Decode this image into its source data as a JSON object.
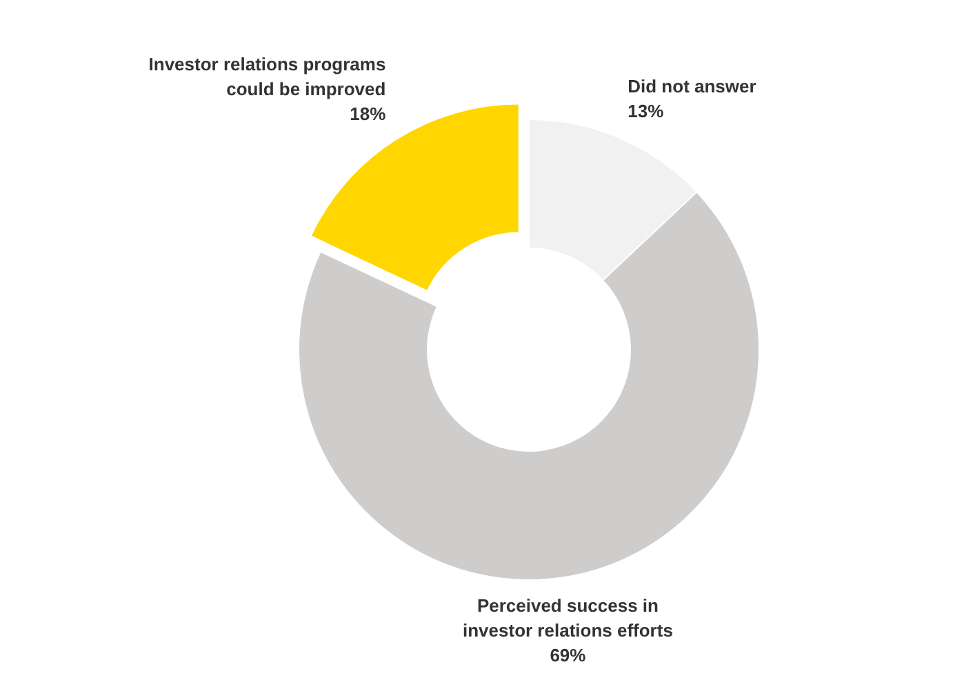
{
  "chart_data": {
    "type": "donut",
    "categories": [
      "Did not answer",
      "Perceived success in investor relations efforts",
      "Investor relations programs could be improved"
    ],
    "values": [
      13,
      69,
      18
    ],
    "value_labels": [
      "13%",
      "69%",
      "18%"
    ],
    "colors": [
      "#f1f1f1",
      "#cfcdcc",
      "#ffd600"
    ]
  }
}
